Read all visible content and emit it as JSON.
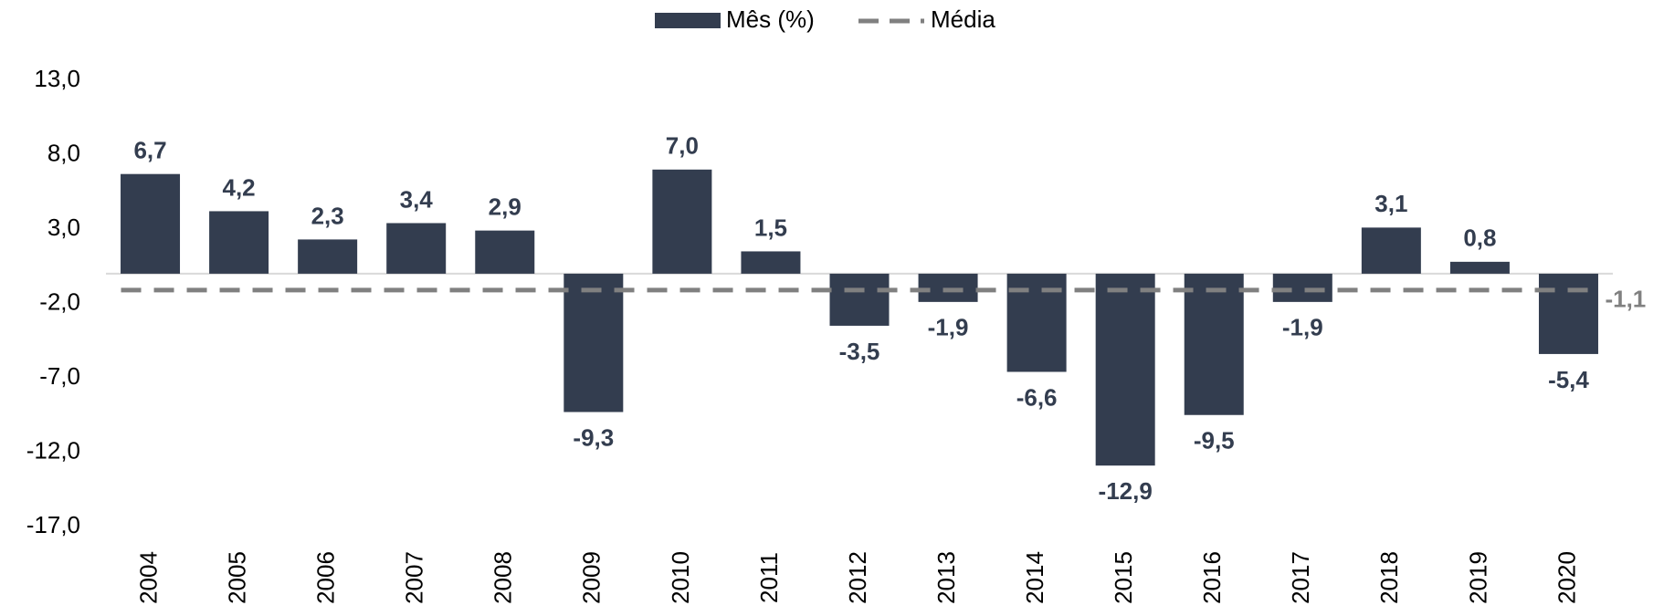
{
  "chart_data": {
    "type": "bar",
    "categories": [
      "2004",
      "2005",
      "2006",
      "2007",
      "2008",
      "2009",
      "2010",
      "2011",
      "2012",
      "2013",
      "2014",
      "2015",
      "2016",
      "2017",
      "2018",
      "2019",
      "2020"
    ],
    "series": [
      {
        "name": "Mês (%)",
        "color": "#333d4f",
        "values": [
          6.7,
          4.2,
          2.3,
          3.4,
          2.9,
          -9.3,
          7.0,
          1.5,
          -3.5,
          -1.9,
          -6.6,
          -12.9,
          -9.5,
          -1.9,
          3.1,
          0.8,
          -5.4
        ],
        "value_labels": [
          "6,7",
          "4,2",
          "2,3",
          "3,4",
          "2,9",
          "-9,3",
          "7,0",
          "1,5",
          "-3,5",
          "-1,9",
          "-6,6",
          "-12,9",
          "-9,5",
          "-1,9",
          "3,1",
          "0,8",
          "-5,4"
        ]
      }
    ],
    "average": {
      "name": "Média",
      "value": -1.1,
      "value_label": "-1,1",
      "color": "#808080"
    },
    "ylim": [
      -17,
      13
    ],
    "yticks": [
      {
        "value": 13,
        "label": "13,0"
      },
      {
        "value": 8,
        "label": "8,0"
      },
      {
        "value": 3,
        "label": "3,0"
      },
      {
        "value": -2,
        "label": "-2,0"
      },
      {
        "value": -7,
        "label": "-7,0"
      },
      {
        "value": -12,
        "label": "-12,0"
      },
      {
        "value": -17,
        "label": "-17,0"
      }
    ],
    "grid": false
  }
}
